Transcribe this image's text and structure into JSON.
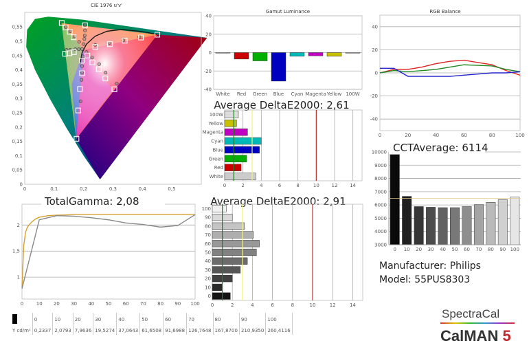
{
  "colors": {
    "red": "#cc0000",
    "green": "#00b000",
    "blue": "#0000c0",
    "cyan": "#00b8b8",
    "magenta": "#c000c0",
    "yellow": "#c8c000",
    "target_line_red": "#c03030",
    "target_line_yellow": "#f0f080",
    "target_line_green": "#2a7a2a",
    "gamma_target": "#d4a030",
    "gamma_measured": "#888888"
  },
  "info": {
    "manufacturer": "Manufacturer: Philips",
    "model": "Model: 55PUS8303"
  },
  "logo": {
    "brand": "SpectraCal",
    "product": "CalMAN",
    "version": "5"
  },
  "table": {
    "row_label": "Y cd/m²",
    "headers": [
      "0",
      "10",
      "20",
      "30",
      "40",
      "50",
      "60",
      "70",
      "80",
      "90",
      "100"
    ],
    "values": [
      "0,2337",
      "2,0793",
      "7,9636",
      "19,5274",
      "37,0643",
      "61,6508",
      "91,6988",
      "126,7648",
      "167,8700",
      "210,9350",
      "260,4116"
    ]
  },
  "chart_data": [
    {
      "id": "cie",
      "type": "scatter",
      "title": "CIE 1976 u'v'",
      "xlim": [
        0,
        0.6
      ],
      "ylim": [
        0,
        0.59
      ],
      "xticks": [
        "0",
        "0,1",
        "0,2",
        "0,3",
        "0,4",
        "0,5"
      ],
      "xtick_values": [
        0,
        0.1,
        0.2,
        0.3,
        0.4,
        0.5
      ],
      "yticks": [
        "0",
        "0,05",
        "0,1",
        "0,15",
        "0,2",
        "0,25",
        "0,3",
        "0,35",
        "0,4",
        "0,45",
        "0,5",
        "0,55"
      ],
      "ytick_values": [
        0,
        0.05,
        0.1,
        0.15,
        0.2,
        0.25,
        0.3,
        0.35,
        0.4,
        0.45,
        0.5,
        0.55
      ],
      "gamut_triangle": [
        [
          0.451,
          0.523
        ],
        [
          0.125,
          0.563
        ],
        [
          0.175,
          0.158
        ]
      ],
      "targets": [
        [
          0.126,
          0.564
        ],
        [
          0.139,
          0.548
        ],
        [
          0.153,
          0.533
        ],
        [
          0.166,
          0.514
        ],
        [
          0.205,
          0.556
        ],
        [
          0.137,
          0.456
        ],
        [
          0.152,
          0.458
        ],
        [
          0.167,
          0.462
        ],
        [
          0.194,
          0.432
        ],
        [
          0.213,
          0.45
        ],
        [
          0.24,
          0.48
        ],
        [
          0.29,
          0.49
        ],
        [
          0.34,
          0.502
        ],
        [
          0.395,
          0.513
        ],
        [
          0.451,
          0.523
        ],
        [
          0.195,
          0.388
        ],
        [
          0.188,
          0.333
        ],
        [
          0.182,
          0.258
        ],
        [
          0.176,
          0.159
        ],
        [
          0.23,
          0.426
        ],
        [
          0.252,
          0.402
        ],
        [
          0.274,
          0.37
        ],
        [
          0.305,
          0.332
        ]
      ],
      "measured": [
        [
          0.14,
          0.55
        ],
        [
          0.155,
          0.535
        ],
        [
          0.17,
          0.517
        ],
        [
          0.185,
          0.498
        ],
        [
          0.205,
          0.557
        ],
        [
          0.205,
          0.538
        ],
        [
          0.204,
          0.52
        ],
        [
          0.203,
          0.508
        ],
        [
          0.2,
          0.49
        ],
        [
          0.142,
          0.47
        ],
        [
          0.155,
          0.47
        ],
        [
          0.172,
          0.472
        ],
        [
          0.184,
          0.472
        ],
        [
          0.195,
          0.473
        ],
        [
          0.21,
          0.462
        ],
        [
          0.198,
          0.447
        ],
        [
          0.195,
          0.413
        ],
        [
          0.195,
          0.39
        ],
        [
          0.193,
          0.365
        ],
        [
          0.19,
          0.29
        ],
        [
          0.24,
          0.487
        ],
        [
          0.288,
          0.494
        ],
        [
          0.335,
          0.503
        ],
        [
          0.39,
          0.515
        ],
        [
          0.229,
          0.443
        ],
        [
          0.253,
          0.42
        ],
        [
          0.275,
          0.39
        ],
        [
          0.313,
          0.352
        ]
      ],
      "planckian_locus": [
        [
          0.188,
          0.42
        ],
        [
          0.195,
          0.46
        ],
        [
          0.21,
          0.49
        ],
        [
          0.24,
          0.518
        ],
        [
          0.28,
          0.535
        ],
        [
          0.33,
          0.541
        ],
        [
          0.4,
          0.534
        ],
        [
          0.45,
          0.524
        ]
      ]
    },
    {
      "id": "gamut_lum",
      "type": "bar",
      "title": "Gamut Luminance",
      "categories": [
        "White",
        "Red",
        "Green",
        "Blue",
        "Cyan",
        "Magenta",
        "Yellow",
        "100W"
      ],
      "values": [
        0,
        -7,
        -9,
        -31,
        -4,
        -3.5,
        -4,
        0
      ],
      "bar_colors": [
        "#cccccc",
        "#cc0000",
        "#00b000",
        "#0000c0",
        "#00b8b8",
        "#c000c0",
        "#c8c000",
        "#cccccc"
      ],
      "ylim": [
        -40,
        40
      ],
      "yticks": [
        "-40",
        "-20",
        "0",
        "20",
        "40"
      ],
      "ytick_values": [
        -40,
        -20,
        0,
        20,
        40
      ]
    },
    {
      "id": "rgb",
      "type": "line",
      "title": "RGB Balance",
      "x": [
        0,
        10,
        20,
        30,
        40,
        50,
        60,
        70,
        80,
        90,
        100
      ],
      "xlim": [
        0,
        100
      ],
      "ylim": [
        -50,
        50
      ],
      "xticks": [
        "0",
        "20",
        "40",
        "60",
        "80",
        "100"
      ],
      "xtick_values": [
        0,
        20,
        40,
        60,
        80,
        100
      ],
      "yticks": [
        "-40",
        "-20",
        "0",
        "20",
        "40"
      ],
      "ytick_values": [
        -40,
        -20,
        0,
        20,
        40
      ],
      "series": [
        {
          "color": "#dd2222",
          "values": [
            0,
            3,
            3,
            5,
            8,
            10,
            11,
            9,
            7,
            2,
            -2
          ]
        },
        {
          "color": "#228822",
          "values": [
            0,
            2,
            1,
            2,
            3,
            5,
            7,
            6.5,
            6,
            3,
            1
          ]
        },
        {
          "color": "#2222cc",
          "values": [
            4,
            4,
            -3,
            -3,
            -3,
            -3,
            -2,
            -1,
            0,
            0,
            1
          ]
        }
      ]
    },
    {
      "id": "de_color",
      "type": "bar",
      "orientation": "horizontal",
      "title": "Average DeltaE2000: 2,61",
      "categories": [
        "White",
        "Red",
        "Green",
        "Blue",
        "Cyan",
        "Magenta",
        "Yellow",
        "100W"
      ],
      "values": [
        3.4,
        1.8,
        2.4,
        3.8,
        4.0,
        2.5,
        1.3,
        1.5
      ],
      "bar_colors": [
        "#cccccc",
        "#cc0000",
        "#00b000",
        "#0000c0",
        "#00b8b8",
        "#c000c0",
        "#c8c000",
        "#dddddd"
      ],
      "xlim": [
        0,
        15
      ],
      "xticks": [
        "0",
        "2",
        "4",
        "6",
        "8",
        "10",
        "12",
        "14"
      ],
      "xtick_values": [
        0,
        2,
        4,
        6,
        8,
        10,
        12,
        14
      ],
      "reference_lines": [
        1,
        3,
        10
      ]
    },
    {
      "id": "cct",
      "type": "bar",
      "title": "CCTAverage: 6114",
      "categories": [
        "0",
        "10",
        "20",
        "30",
        "40",
        "50",
        "60",
        "70",
        "80",
        "90",
        "100"
      ],
      "values": [
        9800,
        6650,
        5880,
        5830,
        5800,
        5800,
        5880,
        6030,
        6200,
        6400,
        6600
      ],
      "target": 6500,
      "ylim": [
        3000,
        10000
      ],
      "yticks": [
        "3000",
        "4000",
        "5000",
        "6000",
        "7000",
        "8000",
        "9000",
        "10000"
      ],
      "ytick_values": [
        3000,
        4000,
        5000,
        6000,
        7000,
        8000,
        9000,
        10000
      ]
    },
    {
      "id": "gamma",
      "type": "line",
      "title": "TotalGamma: 2,08",
      "xlim": [
        0,
        100
      ],
      "ylim": [
        0.58,
        2.4
      ],
      "xticks": [
        "0",
        "10",
        "20",
        "30",
        "40",
        "50",
        "60",
        "70",
        "80",
        "90",
        "100"
      ],
      "xtick_values": [
        0,
        10,
        20,
        30,
        40,
        50,
        60,
        70,
        80,
        90,
        100
      ],
      "yticks": [
        "1",
        "1,5",
        "2"
      ],
      "ytick_values": [
        1,
        1.5,
        2
      ],
      "series": [
        {
          "color": "#d4a030",
          "x": [
            0,
            1,
            2,
            3,
            4,
            6,
            8,
            10,
            15,
            20,
            30,
            100
          ],
          "values": [
            0.8,
            1.6,
            1.85,
            1.95,
            2.0,
            2.07,
            2.12,
            2.15,
            2.18,
            2.19,
            2.2,
            2.2
          ]
        },
        {
          "color": "#888888",
          "x": [
            0,
            10,
            20,
            30,
            40,
            50,
            60,
            70,
            80,
            90,
            100
          ],
          "values": [
            0.78,
            2.1,
            2.18,
            2.17,
            2.14,
            2.1,
            2.04,
            2.01,
            1.96,
            1.99,
            2.2
          ]
        }
      ]
    },
    {
      "id": "de_gray",
      "type": "bar",
      "orientation": "horizontal",
      "title": "Average DeltaE2000: 2,91",
      "categories": [
        "0",
        "10",
        "20",
        "30",
        "40",
        "50",
        "60",
        "70",
        "80",
        "90",
        "100"
      ],
      "values": [
        1.8,
        1.0,
        2.0,
        2.8,
        3.5,
        4.4,
        4.7,
        4.1,
        3.2,
        2.0,
        1.4
      ],
      "xlim": [
        0,
        15
      ],
      "xticks": [
        "0",
        "2",
        "4",
        "6",
        "8",
        "10",
        "12",
        "14"
      ],
      "xtick_values": [
        0,
        2,
        4,
        6,
        8,
        10,
        12,
        14
      ],
      "reference_lines": [
        1,
        3,
        10
      ]
    }
  ]
}
